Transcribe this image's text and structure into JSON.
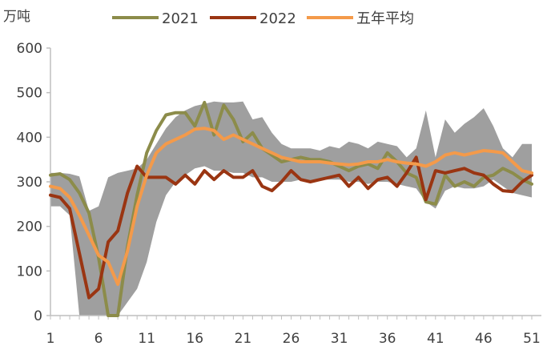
{
  "chart_data": {
    "type": "line",
    "unit_label": "万吨",
    "x": [
      1,
      2,
      3,
      4,
      5,
      6,
      7,
      8,
      9,
      10,
      11,
      12,
      13,
      14,
      15,
      16,
      17,
      18,
      19,
      20,
      21,
      22,
      23,
      24,
      25,
      26,
      27,
      28,
      29,
      30,
      31,
      32,
      33,
      34,
      35,
      36,
      37,
      38,
      39,
      40,
      41,
      42,
      43,
      44,
      45,
      46,
      47,
      48,
      49,
      50,
      51
    ],
    "x_ticks": [
      "1",
      "6",
      "11",
      "16",
      "21",
      "26",
      "31",
      "36",
      "41",
      "46",
      "51"
    ],
    "y_ticks": [
      "0",
      "100",
      "200",
      "300",
      "400",
      "500",
      "600"
    ],
    "ylim": [
      0,
      600
    ],
    "xlim": [
      1,
      52
    ],
    "grid": false,
    "legend_position": "top",
    "series": [
      {
        "name": "2021",
        "color": "#8c8c4a",
        "values": [
          315,
          318,
          305,
          275,
          230,
          130,
          0,
          0,
          155,
          270,
          365,
          415,
          450,
          455,
          455,
          425,
          478,
          405,
          472,
          440,
          390,
          410,
          375,
          360,
          345,
          350,
          355,
          350,
          350,
          345,
          335,
          325,
          335,
          340,
          330,
          365,
          345,
          320,
          310,
          255,
          250,
          315,
          290,
          300,
          290,
          310,
          315,
          330,
          320,
          305,
          295
        ]
      },
      {
        "name": "2022",
        "color": "#9a3512",
        "values": [
          270,
          265,
          240,
          140,
          40,
          60,
          165,
          190,
          275,
          335,
          310,
          310,
          310,
          295,
          315,
          295,
          325,
          305,
          325,
          310,
          310,
          325,
          290,
          280,
          300,
          325,
          305,
          300,
          305,
          310,
          315,
          290,
          310,
          285,
          305,
          310,
          290,
          320,
          355,
          260,
          325,
          320,
          325,
          330,
          320,
          315,
          295,
          280,
          278,
          300,
          315
        ]
      },
      {
        "name": "五年平均",
        "color": "#f49a4a",
        "values": [
          290,
          285,
          265,
          225,
          180,
          135,
          120,
          70,
          145,
          245,
          315,
          365,
          385,
          395,
          405,
          418,
          420,
          415,
          395,
          405,
          395,
          385,
          375,
          365,
          355,
          350,
          345,
          345,
          345,
          342,
          340,
          338,
          340,
          345,
          345,
          350,
          345,
          342,
          340,
          335,
          345,
          360,
          365,
          360,
          365,
          370,
          368,
          365,
          345,
          325,
          320
        ]
      },
      {
        "name": "",
        "band": true,
        "color": "#9f9f9f",
        "upper": [
          320,
          320,
          318,
          312,
          235,
          245,
          310,
          320,
          325,
          330,
          350,
          385,
          420,
          445,
          460,
          470,
          475,
          480,
          478,
          478,
          480,
          440,
          445,
          410,
          385,
          375,
          375,
          375,
          370,
          380,
          375,
          390,
          385,
          375,
          390,
          385,
          380,
          355,
          375,
          460,
          355,
          440,
          410,
          430,
          445,
          465,
          425,
          375,
          355,
          385,
          385
        ],
        "lower": [
          245,
          245,
          225,
          0,
          0,
          0,
          0,
          0,
          30,
          60,
          120,
          210,
          270,
          300,
          315,
          330,
          335,
          325,
          325,
          320,
          320,
          310,
          310,
          300,
          300,
          300,
          305,
          300,
          305,
          305,
          305,
          300,
          300,
          295,
          300,
          300,
          295,
          290,
          285,
          255,
          240,
          280,
          290,
          285,
          285,
          290,
          305,
          290,
          275,
          270,
          265
        ]
      }
    ]
  }
}
